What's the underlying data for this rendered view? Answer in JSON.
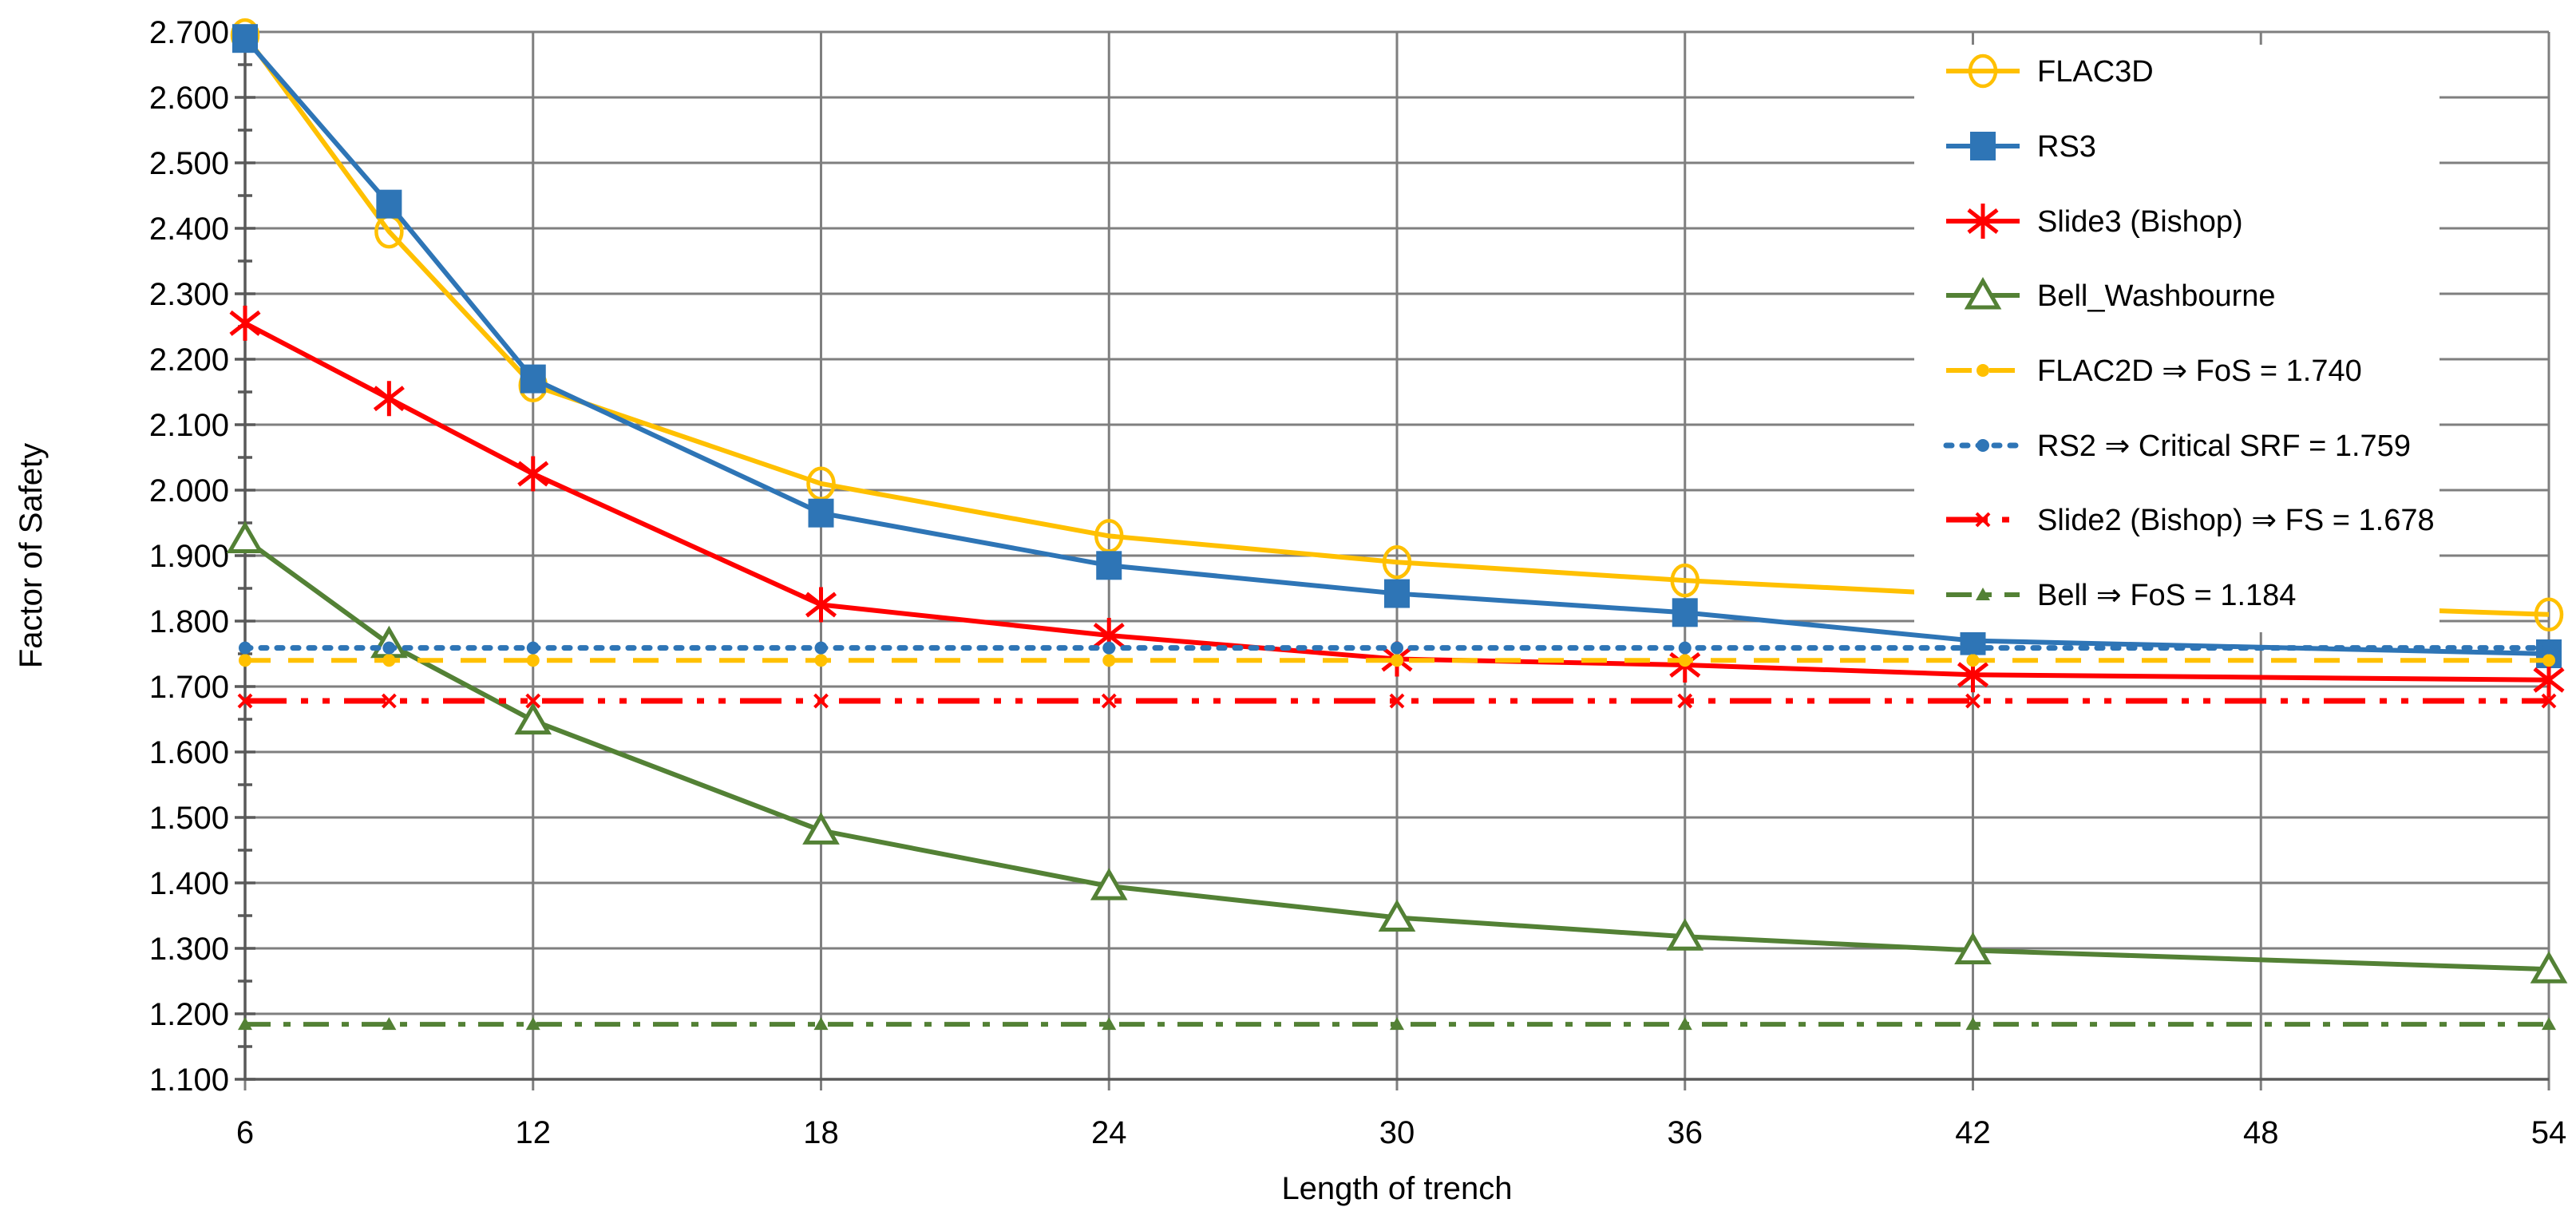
{
  "chart_data": {
    "type": "line",
    "title": "",
    "xlabel": "Length of trench",
    "ylabel": "Factor of Safety",
    "x": [
      6,
      9,
      12,
      18,
      24,
      30,
      36,
      42,
      54
    ],
    "xtick_labels": [
      "6",
      "12",
      "18",
      "24",
      "30",
      "36",
      "42",
      "48",
      "54"
    ],
    "xticks": [
      6,
      12,
      18,
      24,
      30,
      36,
      42,
      48,
      54
    ],
    "ylim": [
      1.1,
      2.7
    ],
    "ytick_step": 0.1,
    "ytick_labels": [
      "1.100",
      "1.200",
      "1.300",
      "1.400",
      "1.500",
      "1.600",
      "1.700",
      "1.800",
      "1.900",
      "2.000",
      "2.100",
      "2.200",
      "2.300",
      "2.400",
      "2.500",
      "2.600",
      "2.700"
    ],
    "grid": true,
    "legend_position": "top-right",
    "series": [
      {
        "name": "FLAC3D",
        "color": "#FFC000",
        "marker": "circle",
        "line": "solid",
        "values": [
          2.695,
          2.395,
          2.16,
          2.01,
          1.93,
          1.89,
          1.862,
          1.84,
          1.81
        ]
      },
      {
        "name": "RS3",
        "color": "#2E75B6",
        "marker": "square",
        "line": "solid",
        "values": [
          2.69,
          2.437,
          2.17,
          1.965,
          1.885,
          1.842,
          1.813,
          1.77,
          1.75
        ]
      },
      {
        "name": "Slide3 (Bishop)",
        "color": "#FF0000",
        "marker": "asterisk",
        "line": "solid",
        "values": [
          2.255,
          2.14,
          2.025,
          1.825,
          1.778,
          1.742,
          1.733,
          1.718,
          1.71
        ]
      },
      {
        "name": "Bell_Washbourne",
        "color": "#538135",
        "marker": "triangle",
        "line": "solid",
        "values": [
          1.925,
          1.765,
          1.648,
          1.48,
          1.395,
          1.347,
          1.318,
          1.297,
          1.268
        ]
      },
      {
        "name": "FLAC2D  ⇒ FoS = 1.740",
        "color": "#FFC000",
        "marker": "dot",
        "line": "dashed",
        "constant": 1.74
      },
      {
        "name": "RS2  ⇒ Critical SRF = 1.759",
        "color": "#2E75B6",
        "marker": "dot",
        "line": "dotted",
        "constant": 1.759
      },
      {
        "name": "Slide2 (Bishop)  ⇒ FS = 1.678",
        "color": "#FF0000",
        "marker": "x-small",
        "line": "dashdotdot",
        "constant": 1.678
      },
      {
        "name": "Bell  ⇒ FoS = 1.184",
        "color": "#538135",
        "marker": "tri-small",
        "line": "dashdot",
        "constant": 1.184
      }
    ],
    "colors": {
      "gridline": "#7F7F7F",
      "axis": "#595959",
      "text": "#000000",
      "background": "#FFFFFF",
      "legend_background": "#FFFFFF"
    }
  }
}
